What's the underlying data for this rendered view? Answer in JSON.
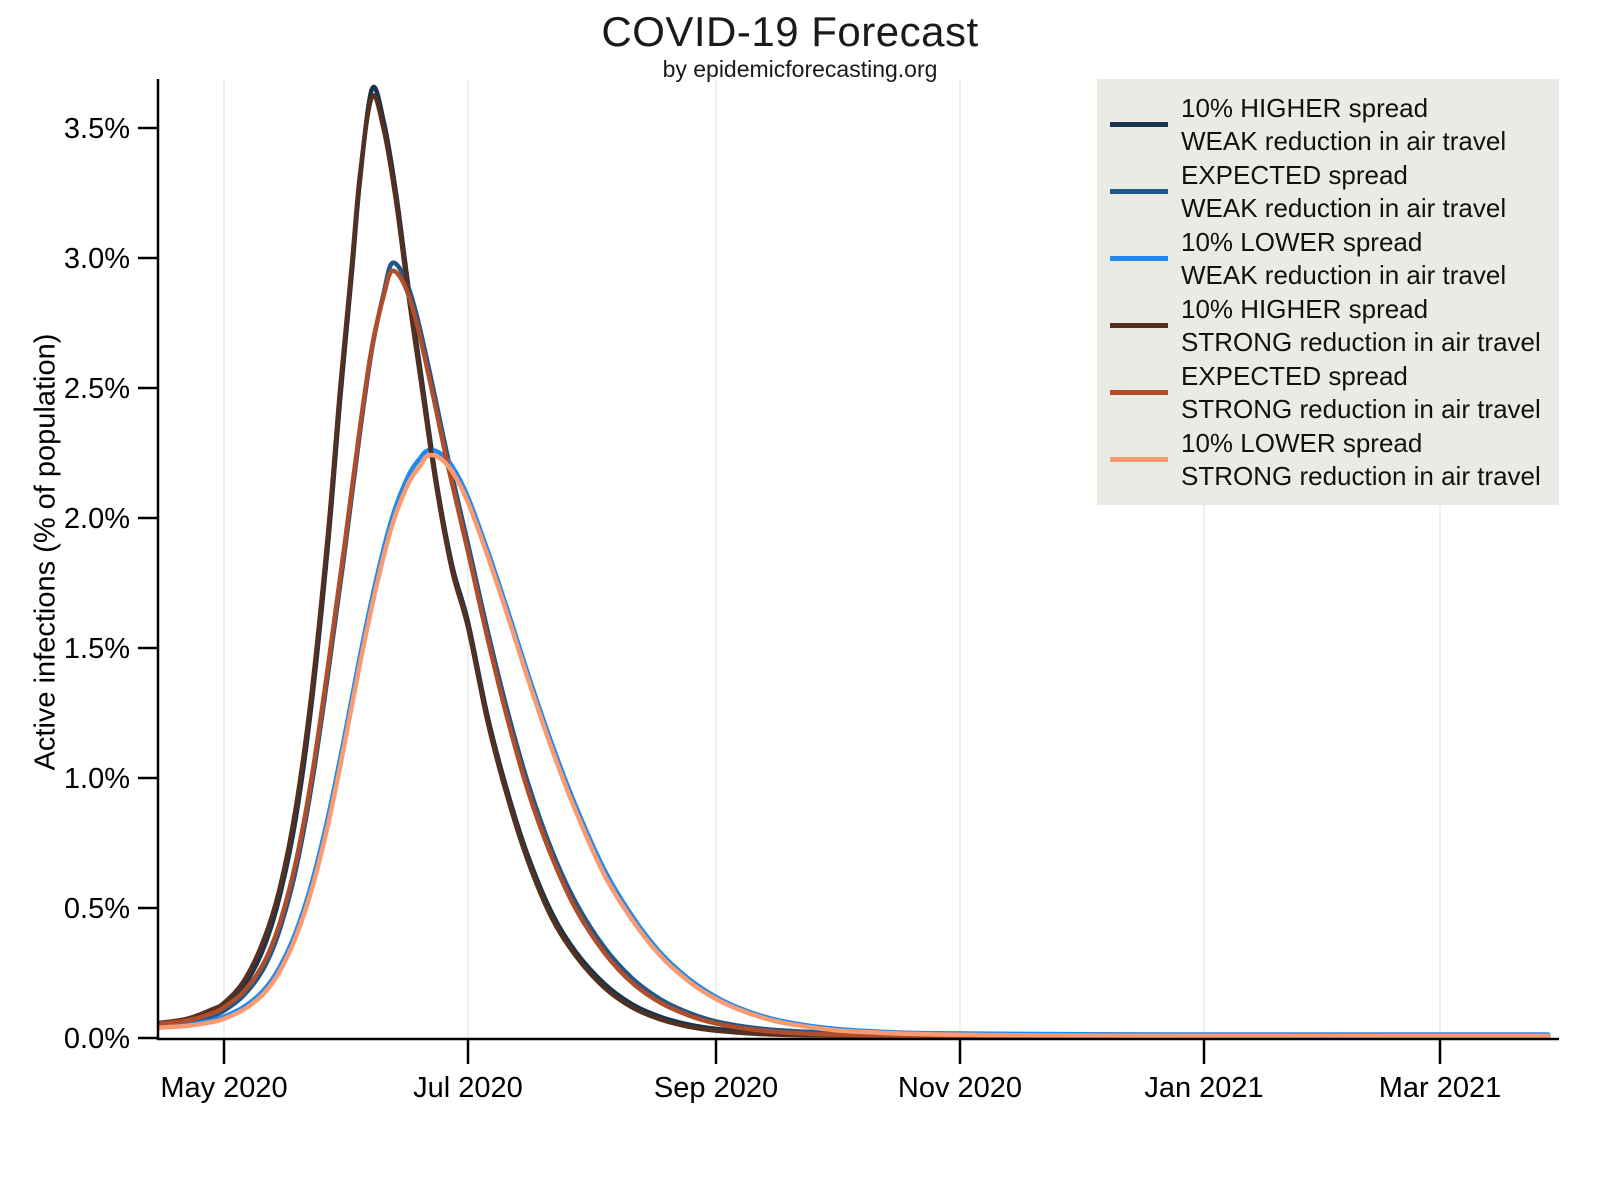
{
  "chart_data": {
    "type": "line",
    "title": "COVID-19 Forecast",
    "subtitle": "by epidemicforecasting.org",
    "ylabel": "Active infections (% of population)",
    "xlabel": "",
    "x_day0_date": "2020-04-14",
    "x_unit": "days since 2020-04-14",
    "xlim_days": [
      0,
      348
    ],
    "ylim_pct": [
      0,
      3.69
    ],
    "grid": "vertical-only",
    "legend_position": "upper-right",
    "x_ticks": [
      {
        "day": 17,
        "label": "May 2020"
      },
      {
        "day": 78,
        "label": "Jul 2020"
      },
      {
        "day": 140,
        "label": "Sep 2020"
      },
      {
        "day": 201,
        "label": "Nov 2020"
      },
      {
        "day": 262,
        "label": "Jan 2021"
      },
      {
        "day": 321,
        "label": "Mar 2021"
      }
    ],
    "y_ticks": [
      {
        "value": 0.0,
        "label": "0.0%"
      },
      {
        "value": 0.5,
        "label": "0.5%"
      },
      {
        "value": 1.0,
        "label": "1.0%"
      },
      {
        "value": 1.5,
        "label": "1.5%"
      },
      {
        "value": 2.0,
        "label": "2.0%"
      },
      {
        "value": 2.5,
        "label": "2.5%"
      },
      {
        "value": 3.0,
        "label": "3.0%"
      },
      {
        "value": 3.5,
        "label": "3.5%"
      }
    ],
    "series": [
      {
        "key": "higher_weak",
        "label_line1": "10% HIGHER spread",
        "label_line2": "WEAK reduction in air travel",
        "color": "#18344f",
        "peak_pct": 3.65,
        "points": [
          [
            1,
            0.05
          ],
          [
            8,
            0.065
          ],
          [
            14,
            0.095
          ],
          [
            17,
            0.12
          ],
          [
            22,
            0.2
          ],
          [
            27,
            0.35
          ],
          [
            31,
            0.55
          ],
          [
            35,
            0.85
          ],
          [
            39,
            1.3
          ],
          [
            43,
            1.9
          ],
          [
            46,
            2.45
          ],
          [
            49,
            2.95
          ],
          [
            51,
            3.3
          ],
          [
            54,
            3.65
          ],
          [
            57,
            3.52
          ],
          [
            60,
            3.25
          ],
          [
            63,
            2.9
          ],
          [
            66,
            2.58
          ],
          [
            70,
            2.15
          ],
          [
            74,
            1.82
          ],
          [
            78,
            1.6
          ],
          [
            83,
            1.23
          ],
          [
            88,
            0.94
          ],
          [
            93,
            0.7
          ],
          [
            99,
            0.48
          ],
          [
            105,
            0.33
          ],
          [
            112,
            0.21
          ],
          [
            119,
            0.13
          ],
          [
            126,
            0.082
          ],
          [
            133,
            0.052
          ],
          [
            140,
            0.035
          ],
          [
            150,
            0.022
          ],
          [
            160,
            0.017
          ],
          [
            175,
            0.014
          ],
          [
            195,
            0.013
          ],
          [
            230,
            0.012
          ],
          [
            270,
            0.012
          ],
          [
            310,
            0.012
          ],
          [
            348,
            0.012
          ]
        ]
      },
      {
        "key": "expected_weak",
        "label_line1": "EXPECTED spread",
        "label_line2": "WEAK reduction in air travel",
        "color": "#20578a",
        "peak_pct": 2.98,
        "points": [
          [
            1,
            0.048
          ],
          [
            8,
            0.06
          ],
          [
            14,
            0.085
          ],
          [
            17,
            0.105
          ],
          [
            22,
            0.165
          ],
          [
            27,
            0.27
          ],
          [
            31,
            0.42
          ],
          [
            35,
            0.65
          ],
          [
            39,
            0.98
          ],
          [
            43,
            1.4
          ],
          [
            47,
            1.85
          ],
          [
            51,
            2.33
          ],
          [
            54,
            2.65
          ],
          [
            57,
            2.87
          ],
          [
            59,
            2.98
          ],
          [
            62,
            2.93
          ],
          [
            65,
            2.79
          ],
          [
            69,
            2.52
          ],
          [
            73,
            2.23
          ],
          [
            78,
            1.9
          ],
          [
            83,
            1.56
          ],
          [
            88,
            1.25
          ],
          [
            93,
            0.98
          ],
          [
            99,
            0.72
          ],
          [
            105,
            0.52
          ],
          [
            112,
            0.35
          ],
          [
            119,
            0.23
          ],
          [
            126,
            0.15
          ],
          [
            133,
            0.098
          ],
          [
            140,
            0.064
          ],
          [
            150,
            0.038
          ],
          [
            160,
            0.026
          ],
          [
            175,
            0.018
          ],
          [
            195,
            0.015
          ],
          [
            230,
            0.013
          ],
          [
            270,
            0.013
          ],
          [
            310,
            0.013
          ],
          [
            348,
            0.013
          ]
        ]
      },
      {
        "key": "lower_weak",
        "label_line1": "10% LOWER spread",
        "label_line2": "WEAK reduction in air travel",
        "color": "#2289ef",
        "peak_pct": 2.26,
        "points": [
          [
            1,
            0.044
          ],
          [
            8,
            0.052
          ],
          [
            14,
            0.068
          ],
          [
            17,
            0.082
          ],
          [
            22,
            0.12
          ],
          [
            27,
            0.185
          ],
          [
            31,
            0.275
          ],
          [
            35,
            0.41
          ],
          [
            39,
            0.6
          ],
          [
            43,
            0.85
          ],
          [
            47,
            1.15
          ],
          [
            51,
            1.47
          ],
          [
            55,
            1.76
          ],
          [
            59,
            2.0
          ],
          [
            63,
            2.16
          ],
          [
            66,
            2.23
          ],
          [
            68,
            2.26
          ],
          [
            71,
            2.25
          ],
          [
            74,
            2.2
          ],
          [
            78,
            2.08
          ],
          [
            83,
            1.87
          ],
          [
            88,
            1.64
          ],
          [
            93,
            1.4
          ],
          [
            99,
            1.13
          ],
          [
            105,
            0.89
          ],
          [
            112,
            0.65
          ],
          [
            119,
            0.47
          ],
          [
            126,
            0.33
          ],
          [
            133,
            0.23
          ],
          [
            140,
            0.158
          ],
          [
            147,
            0.108
          ],
          [
            154,
            0.074
          ],
          [
            162,
            0.05
          ],
          [
            170,
            0.035
          ],
          [
            180,
            0.025
          ],
          [
            192,
            0.019
          ],
          [
            210,
            0.016
          ],
          [
            240,
            0.014
          ],
          [
            280,
            0.013
          ],
          [
            320,
            0.013
          ],
          [
            348,
            0.013
          ]
        ]
      },
      {
        "key": "higher_strong",
        "label_line1": "10% HIGHER spread",
        "label_line2": "STRONG reduction in air travel",
        "color": "#53301f",
        "peak_pct": 3.62,
        "points": [
          [
            1,
            0.058
          ],
          [
            8,
            0.075
          ],
          [
            14,
            0.11
          ],
          [
            17,
            0.135
          ],
          [
            22,
            0.22
          ],
          [
            27,
            0.38
          ],
          [
            31,
            0.58
          ],
          [
            35,
            0.89
          ],
          [
            39,
            1.34
          ],
          [
            43,
            1.94
          ],
          [
            46,
            2.49
          ],
          [
            49,
            2.98
          ],
          [
            51,
            3.32
          ],
          [
            54,
            3.62
          ],
          [
            57,
            3.49
          ],
          [
            60,
            3.22
          ],
          [
            63,
            2.87
          ],
          [
            66,
            2.55
          ],
          [
            70,
            2.13
          ],
          [
            74,
            1.8
          ],
          [
            78,
            1.58
          ],
          [
            83,
            1.21
          ],
          [
            88,
            0.92
          ],
          [
            93,
            0.68
          ],
          [
            99,
            0.46
          ],
          [
            105,
            0.315
          ],
          [
            112,
            0.195
          ],
          [
            119,
            0.118
          ],
          [
            126,
            0.072
          ],
          [
            133,
            0.044
          ],
          [
            140,
            0.028
          ],
          [
            150,
            0.016
          ],
          [
            160,
            0.011
          ],
          [
            175,
            0.008
          ],
          [
            195,
            0.007
          ],
          [
            230,
            0.006
          ],
          [
            270,
            0.006
          ],
          [
            310,
            0.006
          ],
          [
            348,
            0.006
          ]
        ]
      },
      {
        "key": "expected_strong",
        "label_line1": "EXPECTED spread",
        "label_line2": "STRONG reduction in air travel",
        "color": "#b04e2b",
        "peak_pct": 2.95,
        "points": [
          [
            1,
            0.055
          ],
          [
            8,
            0.068
          ],
          [
            14,
            0.095
          ],
          [
            17,
            0.118
          ],
          [
            22,
            0.18
          ],
          [
            27,
            0.29
          ],
          [
            31,
            0.445
          ],
          [
            35,
            0.68
          ],
          [
            39,
            1.01
          ],
          [
            43,
            1.43
          ],
          [
            47,
            1.88
          ],
          [
            51,
            2.35
          ],
          [
            54,
            2.66
          ],
          [
            57,
            2.86
          ],
          [
            59,
            2.95
          ],
          [
            62,
            2.9
          ],
          [
            65,
            2.76
          ],
          [
            69,
            2.49
          ],
          [
            73,
            2.2
          ],
          [
            78,
            1.87
          ],
          [
            83,
            1.53
          ],
          [
            88,
            1.22
          ],
          [
            93,
            0.95
          ],
          [
            99,
            0.695
          ],
          [
            105,
            0.495
          ],
          [
            112,
            0.33
          ],
          [
            119,
            0.213
          ],
          [
            126,
            0.137
          ],
          [
            133,
            0.088
          ],
          [
            140,
            0.056
          ],
          [
            150,
            0.031
          ],
          [
            160,
            0.019
          ],
          [
            175,
            0.011
          ],
          [
            195,
            0.008
          ],
          [
            230,
            0.007
          ],
          [
            270,
            0.007
          ],
          [
            310,
            0.007
          ],
          [
            348,
            0.007
          ]
        ]
      },
      {
        "key": "lower_strong",
        "label_line1": "10% LOWER spread",
        "label_line2": "STRONG reduction in air travel",
        "color": "#f89b72",
        "peak_pct": 2.24,
        "points": [
          [
            1,
            0.04
          ],
          [
            8,
            0.047
          ],
          [
            14,
            0.061
          ],
          [
            17,
            0.074
          ],
          [
            22,
            0.11
          ],
          [
            27,
            0.172
          ],
          [
            31,
            0.258
          ],
          [
            35,
            0.39
          ],
          [
            39,
            0.575
          ],
          [
            43,
            0.82
          ],
          [
            47,
            1.12
          ],
          [
            51,
            1.44
          ],
          [
            55,
            1.73
          ],
          [
            59,
            1.97
          ],
          [
            63,
            2.13
          ],
          [
            66,
            2.2
          ],
          [
            68,
            2.24
          ],
          [
            71,
            2.23
          ],
          [
            74,
            2.18
          ],
          [
            78,
            2.06
          ],
          [
            83,
            1.85
          ],
          [
            88,
            1.62
          ],
          [
            93,
            1.38
          ],
          [
            99,
            1.11
          ],
          [
            105,
            0.87
          ],
          [
            112,
            0.63
          ],
          [
            119,
            0.455
          ],
          [
            126,
            0.318
          ],
          [
            133,
            0.22
          ],
          [
            140,
            0.15
          ],
          [
            147,
            0.102
          ],
          [
            154,
            0.068
          ],
          [
            162,
            0.045
          ],
          [
            170,
            0.03
          ],
          [
            180,
            0.021
          ],
          [
            192,
            0.015
          ],
          [
            210,
            0.011
          ],
          [
            240,
            0.009
          ],
          [
            280,
            0.008
          ],
          [
            320,
            0.008
          ],
          [
            348,
            0.008
          ]
        ]
      }
    ],
    "colors": {
      "axis": "#000000",
      "gridline": "#f0f0ed",
      "legend_background": "#eaeae4",
      "text": "#111111"
    }
  }
}
